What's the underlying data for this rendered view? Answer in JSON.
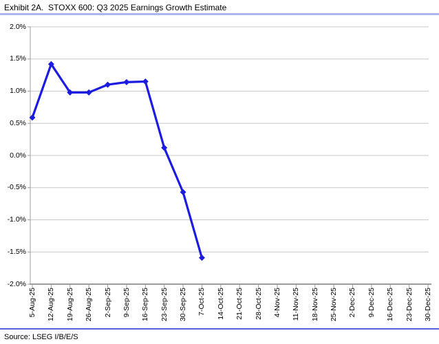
{
  "header": {
    "title": "Exhibit 2A.  STOXX 600: Q3 2025 Earnings Growth Estimate"
  },
  "footer": {
    "source": "Source: LSEG I/B/E/S"
  },
  "colors": {
    "line": "#1c1ce0",
    "gridline": "#c8c8c8",
    "axis": "#9c9c9c",
    "top_rule": "#adb5ee",
    "bottom_rule": "#5763dd",
    "text": "#000000"
  },
  "chart_data": {
    "type": "line",
    "title": "Exhibit 2A.  STOXX 600: Q3 2025 Earnings Growth Estimate",
    "xlabel": "",
    "ylabel": "",
    "unit": "percent",
    "ylim": [
      -2.0,
      2.0
    ],
    "ytick_step": 0.5,
    "y_tick_labels": [
      "2.0%",
      "1.5%",
      "1.0%",
      "0.5%",
      "0.0%",
      "-0.5%",
      "-1.0%",
      "-1.5%",
      "-2.0%"
    ],
    "grid": true,
    "legend_position": "none",
    "marker": "diamond",
    "categories": [
      "5-Aug-25",
      "12-Aug-25",
      "19-Aug-25",
      "26-Aug-25",
      "2-Sep-25",
      "9-Sep-25",
      "16-Sep-25",
      "23-Sep-25",
      "30-Sep-25",
      "7-Oct-25",
      "14-Oct-25",
      "21-Oct-25",
      "28-Oct-25",
      "4-Nov-25",
      "11-Nov-25",
      "18-Nov-25",
      "25-Nov-25",
      "2-Dec-25",
      "9-Dec-25",
      "16-Dec-25",
      "23-Dec-25",
      "30-Dec-25"
    ],
    "series": [
      {
        "name": "Q3 2025 earnings growth estimate",
        "values": [
          0.59,
          1.42,
          0.98,
          0.98,
          1.1,
          1.14,
          1.15,
          0.12,
          -0.57,
          -1.59,
          null,
          null,
          null,
          null,
          null,
          null,
          null,
          null,
          null,
          null,
          null,
          null
        ]
      }
    ]
  }
}
